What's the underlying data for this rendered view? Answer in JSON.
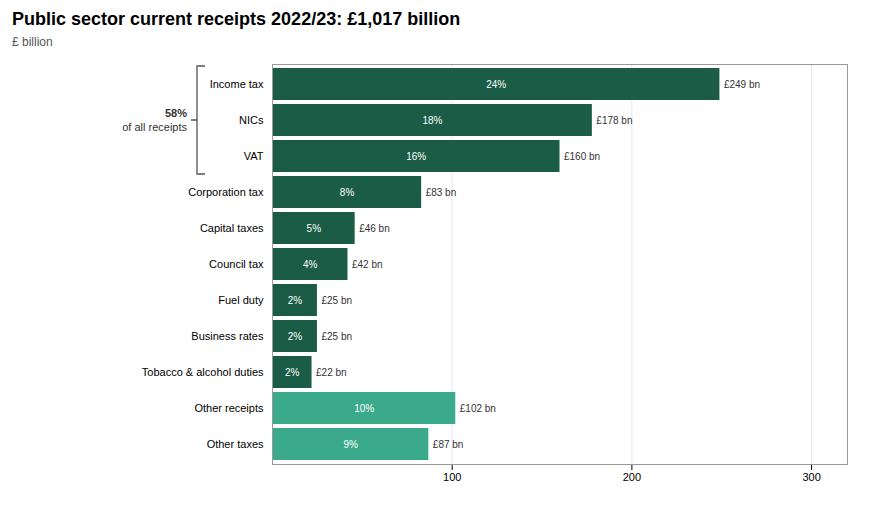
{
  "chart_data": {
    "type": "bar",
    "orientation": "horizontal",
    "title": "Public sector current receipts 2022/23: £1,017 billion",
    "subtitle": "£ billion",
    "categories": [
      "Income tax",
      "NICs",
      "VAT",
      "Corporation tax",
      "Capital taxes",
      "Council tax",
      "Fuel duty",
      "Business rates",
      "Tobacco & alcohol duties",
      "Other receipts",
      "Other taxes"
    ],
    "values": [
      249,
      178,
      160,
      83,
      46,
      42,
      25,
      25,
      22,
      102,
      87
    ],
    "value_labels": [
      "£249 bn",
      "£178 bn",
      "£160 bn",
      "£83 bn",
      "£46 bn",
      "£42 bn",
      "£25 bn",
      "£25 bn",
      "£22 bn",
      "£102 bn",
      "£87 bn"
    ],
    "percentage_labels": [
      "24%",
      "18%",
      "16%",
      "8%",
      "5%",
      "4%",
      "2%",
      "2%",
      "2%",
      "10%",
      "9%"
    ],
    "data_labels": true,
    "colors": [
      "#1a5c45",
      "#1a5c45",
      "#1a5c45",
      "#1a5c45",
      "#1a5c45",
      "#1a5c45",
      "#1a5c45",
      "#1a5c45",
      "#1a5c45",
      "#3aaa8a",
      "#3aaa8a"
    ],
    "xlim": [
      0,
      320
    ],
    "xticks": [
      100,
      200,
      300
    ],
    "grid": true,
    "annotation": {
      "categories": [
        "Income tax",
        "NICs",
        "VAT"
      ],
      "text": [
        "58%",
        "of all receipts"
      ]
    }
  }
}
